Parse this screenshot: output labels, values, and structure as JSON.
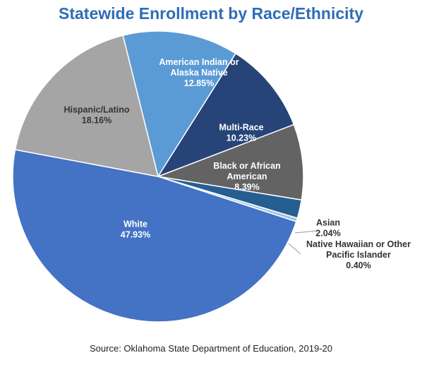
{
  "chart_data": {
    "type": "pie",
    "title": "Statewide Enrollment by Race/Ethnicity",
    "source": "Source: Oklahoma State Department of Education, 2019-20",
    "slices": [
      {
        "lines": [
          "American Indian or",
          "Alaska Native"
        ],
        "pct_label": "12.85%",
        "value": 12.85,
        "color": "#5b9bd5",
        "label_color": "#ffffff"
      },
      {
        "lines": [
          "Multi-Race"
        ],
        "pct_label": "10.23%",
        "value": 10.23,
        "color": "#264478",
        "label_color": "#ffffff"
      },
      {
        "lines": [
          "Black or African",
          "American"
        ],
        "pct_label": "8.39%",
        "value": 8.39,
        "color": "#636363",
        "label_color": "#ffffff"
      },
      {
        "lines": [
          "Asian"
        ],
        "pct_label": "2.04%",
        "value": 2.04,
        "color": "#255e91",
        "label_color": "#333333"
      },
      {
        "lines": [
          "Native Hawaiian or Other",
          "Pacific Islander"
        ],
        "pct_label": "0.40%",
        "value": 0.4,
        "color": "#9dc3e6",
        "label_color": "#333333"
      },
      {
        "lines": [
          "White"
        ],
        "pct_label": "47.93%",
        "value": 47.93,
        "color": "#4472c4",
        "label_color": "#ffffff"
      },
      {
        "lines": [
          "Hispanic/Latino"
        ],
        "pct_label": "18.16%",
        "value": 18.16,
        "color": "#a5a5a5",
        "label_color": "#333333"
      }
    ]
  }
}
